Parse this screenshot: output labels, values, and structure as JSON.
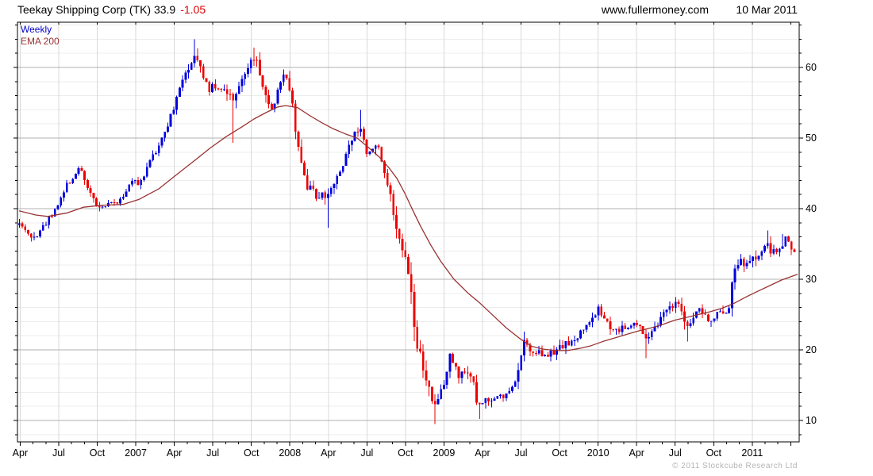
{
  "header": {
    "title_main": "Teekay Shipping Corp (TK) 33.9",
    "change": "-1.05",
    "site": "www.fullermoney.com",
    "date": "10 Mar 2011"
  },
  "legend": {
    "timeframe": "Weekly",
    "indicator": "EMA 200"
  },
  "footer": {
    "copyright": "© 2011 Stockcube Research Ltd"
  },
  "chart_data": {
    "type": "candlestick",
    "title": "Teekay Shipping Corp (TK)",
    "timeframe": "Weekly",
    "last_price": 33.9,
    "change": -1.05,
    "overlay": "EMA 200",
    "x_tick_labels": [
      "Apr",
      "Jul",
      "Oct",
      "2007",
      "Apr",
      "Jul",
      "Oct",
      "2008",
      "Apr",
      "Jul",
      "Oct",
      "2009",
      "Apr",
      "Jul",
      "Oct",
      "2010",
      "Apr",
      "Jul",
      "Oct",
      "2011"
    ],
    "x_range_note": "weekly bars, Apr 2006 - 10 Mar 2011",
    "y_tick_labels": [
      10,
      20,
      30,
      40,
      50,
      60
    ],
    "y_minor_step": 2,
    "ylim": [
      7.0,
      66.4
    ],
    "grid": "major+minor horizontal, vertical at quarters",
    "legend_position": "top-left inside plot",
    "colors": {
      "up_candle": "#0000dd",
      "down_candle": "#ee0000",
      "ema_line": "#993333",
      "major_grid": "#b0b0b0",
      "minor_grid": "#ececec",
      "vertical_grid": "#d9d9d9",
      "axis": "#000000",
      "change_text": "#dd0000",
      "copyright_text": "#b4b4b4"
    },
    "close_keyframes_x_price_vol": [
      [
        24,
        38.3,
        1.6
      ],
      [
        30,
        37.2,
        1.6
      ],
      [
        36,
        36.2,
        1.6
      ],
      [
        42,
        35.8,
        1.5
      ],
      [
        48,
        36.6,
        1.5
      ],
      [
        54,
        37.4,
        1.5
      ],
      [
        60,
        38.4,
        1.5
      ],
      [
        66,
        39.4,
        1.5
      ],
      [
        72,
        40.6,
        1.5
      ],
      [
        78,
        41.8,
        1.5
      ],
      [
        84,
        43.2,
        1.5
      ],
      [
        90,
        44.3,
        1.5
      ],
      [
        96,
        45.3,
        1.6
      ],
      [
        101,
        45.6,
        1.6
      ],
      [
        106,
        44.6,
        1.8
      ],
      [
        111,
        43.0,
        1.8
      ],
      [
        116,
        41.6,
        1.6
      ],
      [
        121,
        40.4,
        1.4
      ],
      [
        126,
        39.9,
        1.2
      ],
      [
        132,
        40.4,
        1.1
      ],
      [
        138,
        40.8,
        1.1
      ],
      [
        144,
        40.9,
        1.1
      ],
      [
        150,
        41.1,
        1.2
      ],
      [
        156,
        41.9,
        1.3
      ],
      [
        162,
        43.1,
        1.4
      ],
      [
        168,
        44.3,
        1.4
      ],
      [
        174,
        43.4,
        1.4
      ],
      [
        180,
        44.6,
        1.5
      ],
      [
        186,
        45.9,
        1.5
      ],
      [
        192,
        47.2,
        1.5
      ],
      [
        198,
        48.6,
        1.6
      ],
      [
        204,
        50.1,
        1.6
      ],
      [
        210,
        51.7,
        1.7
      ],
      [
        216,
        53.3,
        1.7
      ],
      [
        222,
        55.3,
        1.8
      ],
      [
        228,
        57.3,
        1.8
      ],
      [
        234,
        59.2,
        1.8
      ],
      [
        240,
        60.8,
        2.0
      ],
      [
        246,
        61.8,
        2.2
      ],
      [
        252,
        60.3,
        2.2
      ],
      [
        258,
        58.3,
        2.0
      ],
      [
        264,
        56.8,
        1.9
      ],
      [
        270,
        57.4,
        1.8
      ],
      [
        276,
        56.4,
        1.8
      ],
      [
        282,
        56.9,
        1.8
      ],
      [
        288,
        56.2,
        2.0
      ],
      [
        295,
        55.6,
        2.6
      ],
      [
        301,
        57.2,
        2.0
      ],
      [
        307,
        58.8,
        2.0
      ],
      [
        313,
        60.4,
        2.0
      ],
      [
        319,
        61.9,
        2.0
      ],
      [
        325,
        60.0,
        2.2
      ],
      [
        331,
        57.5,
        2.2
      ],
      [
        337,
        55.2,
        2.2
      ],
      [
        343,
        54.3,
        2.2
      ],
      [
        348,
        56.0,
        2.0
      ],
      [
        353,
        58.0,
        2.0
      ],
      [
        358,
        59.6,
        2.0
      ],
      [
        363,
        57.8,
        2.2
      ],
      [
        368,
        54.5,
        2.6
      ],
      [
        373,
        51.0,
        2.8
      ],
      [
        378,
        47.5,
        2.8
      ],
      [
        383,
        44.8,
        2.6
      ],
      [
        388,
        42.3,
        2.4
      ],
      [
        394,
        42.8,
        2.2
      ],
      [
        400,
        41.6,
        2.2
      ],
      [
        406,
        42.4,
        2.2
      ],
      [
        412,
        41.0,
        2.4
      ],
      [
        418,
        43.2,
        2.2
      ],
      [
        424,
        44.6,
        2.0
      ],
      [
        430,
        45.8,
        2.0
      ],
      [
        436,
        47.2,
        2.0
      ],
      [
        442,
        49.3,
        2.0
      ],
      [
        448,
        51.0,
        2.0
      ],
      [
        453,
        51.8,
        2.2
      ],
      [
        458,
        50.0,
        2.2
      ],
      [
        463,
        47.5,
        2.2
      ],
      [
        468,
        47.8,
        2.0
      ],
      [
        473,
        49.6,
        2.0
      ],
      [
        478,
        47.8,
        2.2
      ],
      [
        484,
        45.5,
        2.4
      ],
      [
        490,
        43.0,
        2.6
      ],
      [
        496,
        39.8,
        2.8
      ],
      [
        502,
        36.5,
        3.0
      ],
      [
        508,
        34.0,
        3.0
      ],
      [
        514,
        31.5,
        3.2
      ],
      [
        519,
        27.0,
        4.6
      ],
      [
        525,
        21.5,
        4.0
      ],
      [
        531,
        18.5,
        3.2
      ],
      [
        537,
        15.8,
        3.0
      ],
      [
        543,
        13.0,
        2.6
      ],
      [
        548,
        11.6,
        2.4
      ],
      [
        553,
        12.8,
        2.4
      ],
      [
        558,
        14.8,
        2.4
      ],
      [
        563,
        17.2,
        2.4
      ],
      [
        568,
        20.3,
        2.4
      ],
      [
        573,
        17.5,
        2.4
      ],
      [
        579,
        16.2,
        2.0
      ],
      [
        585,
        17.4,
        1.9
      ],
      [
        591,
        16.6,
        1.9
      ],
      [
        597,
        14.9,
        2.0
      ],
      [
        602,
        12.2,
        2.2
      ],
      [
        607,
        12.5,
        2.0
      ],
      [
        613,
        13.2,
        1.7
      ],
      [
        619,
        12.5,
        1.7
      ],
      [
        625,
        12.9,
        1.7
      ],
      [
        631,
        13.6,
        1.7
      ],
      [
        637,
        13.2,
        1.7
      ],
      [
        643,
        14.2,
        1.7
      ],
      [
        649,
        15.2,
        1.8
      ],
      [
        655,
        17.5,
        2.8
      ],
      [
        660,
        21.6,
        2.8
      ],
      [
        665,
        20.8,
        2.2
      ],
      [
        670,
        18.8,
        2.0
      ],
      [
        676,
        19.8,
        1.7
      ],
      [
        682,
        19.2,
        1.7
      ],
      [
        688,
        18.8,
        1.7
      ],
      [
        694,
        19.4,
        1.7
      ],
      [
        700,
        19.9,
        1.7
      ],
      [
        706,
        20.4,
        1.7
      ],
      [
        712,
        21.0,
        1.7
      ],
      [
        718,
        20.6,
        1.7
      ],
      [
        724,
        21.4,
        1.7
      ],
      [
        730,
        22.3,
        1.8
      ],
      [
        736,
        23.2,
        1.8
      ],
      [
        742,
        24.2,
        1.8
      ],
      [
        748,
        25.0,
        1.8
      ],
      [
        754,
        25.6,
        1.9
      ],
      [
        760,
        24.8,
        1.9
      ],
      [
        766,
        23.4,
        1.8
      ],
      [
        772,
        22.4,
        1.8
      ],
      [
        778,
        22.8,
        1.6
      ],
      [
        784,
        23.0,
        1.5
      ],
      [
        790,
        23.4,
        1.5
      ],
      [
        796,
        23.6,
        1.5
      ],
      [
        802,
        23.8,
        1.6
      ],
      [
        808,
        23.0,
        1.8
      ],
      [
        814,
        21.9,
        2.4
      ],
      [
        820,
        22.7,
        1.8
      ],
      [
        826,
        23.5,
        1.7
      ],
      [
        832,
        24.3,
        1.7
      ],
      [
        838,
        25.2,
        1.7
      ],
      [
        844,
        25.9,
        1.7
      ],
      [
        850,
        26.3,
        1.7
      ],
      [
        856,
        26.6,
        1.8
      ],
      [
        861,
        25.0,
        2.4
      ],
      [
        866,
        22.9,
        2.4
      ],
      [
        871,
        23.9,
        1.9
      ],
      [
        877,
        25.2,
        1.8
      ],
      [
        883,
        26.0,
        1.8
      ],
      [
        889,
        24.9,
        1.8
      ],
      [
        895,
        23.8,
        1.9
      ],
      [
        901,
        24.7,
        1.8
      ],
      [
        907,
        25.4,
        1.8
      ],
      [
        913,
        25.0,
        1.8
      ],
      [
        919,
        25.4,
        2.0
      ],
      [
        924,
        30.6,
        4.4
      ],
      [
        929,
        31.8,
        2.2
      ],
      [
        935,
        32.4,
        1.9
      ],
      [
        941,
        31.9,
        1.9
      ],
      [
        947,
        32.9,
        1.9
      ],
      [
        953,
        32.4,
        1.9
      ],
      [
        959,
        33.4,
        1.9
      ],
      [
        964,
        34.8,
        2.0
      ],
      [
        968,
        35.5,
        2.2
      ],
      [
        971,
        33.4,
        2.2
      ],
      [
        976,
        33.8,
        1.8
      ],
      [
        981,
        34.1,
        1.8
      ],
      [
        986,
        35.1,
        1.8
      ],
      [
        991,
        35.7,
        1.8
      ],
      [
        996,
        34.9,
        1.8
      ],
      [
        1001,
        33.9,
        1.8
      ]
    ],
    "ema_keyframes_x_value": [
      [
        24,
        39.7
      ],
      [
        45,
        39.1
      ],
      [
        60,
        38.9
      ],
      [
        85,
        39.4
      ],
      [
        105,
        40.2
      ],
      [
        130,
        40.5
      ],
      [
        155,
        40.6
      ],
      [
        175,
        41.3
      ],
      [
        200,
        42.8
      ],
      [
        220,
        44.6
      ],
      [
        245,
        46.8
      ],
      [
        265,
        48.6
      ],
      [
        285,
        50.2
      ],
      [
        305,
        51.6
      ],
      [
        320,
        52.7
      ],
      [
        335,
        53.6
      ],
      [
        350,
        54.4
      ],
      [
        360,
        54.6
      ],
      [
        375,
        54.3
      ],
      [
        390,
        53.2
      ],
      [
        405,
        52.2
      ],
      [
        420,
        51.3
      ],
      [
        435,
        50.6
      ],
      [
        450,
        50.0
      ],
      [
        465,
        48.6
      ],
      [
        478,
        47.3
      ],
      [
        490,
        45.8
      ],
      [
        500,
        44.3
      ],
      [
        510,
        42.2
      ],
      [
        520,
        39.8
      ],
      [
        530,
        37.5
      ],
      [
        543,
        34.8
      ],
      [
        555,
        32.6
      ],
      [
        572,
        30.0
      ],
      [
        590,
        28.0
      ],
      [
        605,
        26.6
      ],
      [
        622,
        24.8
      ],
      [
        638,
        23.1
      ],
      [
        655,
        21.6
      ],
      [
        670,
        20.5
      ],
      [
        685,
        20.1
      ],
      [
        700,
        19.9
      ],
      [
        715,
        19.9
      ],
      [
        730,
        20.2
      ],
      [
        745,
        20.6
      ],
      [
        760,
        21.2
      ],
      [
        775,
        21.7
      ],
      [
        790,
        22.2
      ],
      [
        805,
        22.7
      ],
      [
        820,
        23.1
      ],
      [
        835,
        23.6
      ],
      [
        850,
        24.2
      ],
      [
        865,
        24.6
      ],
      [
        880,
        25.0
      ],
      [
        895,
        25.4
      ],
      [
        910,
        25.9
      ],
      [
        925,
        26.6
      ],
      [
        940,
        27.5
      ],
      [
        955,
        28.3
      ],
      [
        970,
        29.1
      ],
      [
        985,
        29.9
      ],
      [
        1005,
        30.7
      ]
    ],
    "wick_extremes": [
      {
        "x": 245,
        "high": 64.0
      },
      {
        "x": 295,
        "low": 49.3
      },
      {
        "x": 320,
        "high": 62.8
      },
      {
        "x": 413,
        "low": 37.3
      },
      {
        "x": 453,
        "high": 54.0
      },
      {
        "x": 548,
        "low": 9.5
      },
      {
        "x": 603,
        "low": 10.2
      },
      {
        "x": 660,
        "high": 22.6
      },
      {
        "x": 815,
        "low": 18.8
      },
      {
        "x": 866,
        "low": 21.2
      },
      {
        "x": 968,
        "high": 36.9
      },
      {
        "x": 987,
        "high": 36.4
      }
    ]
  }
}
